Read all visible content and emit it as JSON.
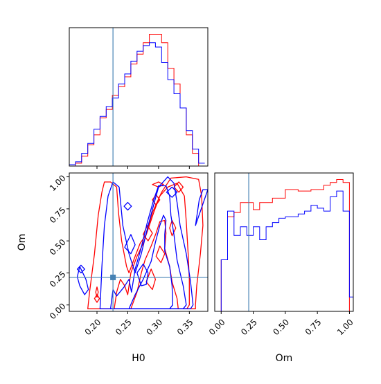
{
  "chart_data": {
    "type": "corner",
    "parameters": [
      "H0",
      "Om"
    ],
    "colors": {
      "run_a": "#0000ff",
      "run_b": "#ff0000",
      "truth": "#4682b4"
    },
    "truth": {
      "H0": 0.226,
      "Om": 0.215
    },
    "axes": {
      "H0": {
        "range": [
          0.155,
          0.38
        ],
        "ticks": [
          0.2,
          0.25,
          0.3,
          0.35
        ],
        "tick_labels": [
          "0.20",
          "0.25",
          "0.30",
          "0.35"
        ],
        "label": "H0"
      },
      "Om": {
        "range": [
          -0.05,
          1.03
        ],
        "ticks": [
          0.0,
          0.25,
          0.5,
          0.75,
          1.0
        ],
        "tick_labels": [
          "0.00",
          "0.25",
          "0.50",
          "0.75",
          "1.00"
        ],
        "label": "Om"
      }
    },
    "hist_h0": {
      "bin_edges": [
        0.155,
        0.165,
        0.175,
        0.185,
        0.195,
        0.205,
        0.215,
        0.225,
        0.235,
        0.245,
        0.255,
        0.265,
        0.275,
        0.285,
        0.295,
        0.305,
        0.315,
        0.325,
        0.335,
        0.345,
        0.355,
        0.365,
        0.375
      ],
      "run_a": [
        1,
        3,
        9,
        16,
        26,
        35,
        42,
        48,
        58,
        65,
        74,
        81,
        85,
        87,
        84,
        73,
        61,
        51,
        41,
        25,
        12,
        2
      ],
      "run_b": [
        0,
        2,
        7,
        15,
        22,
        34,
        40,
        50,
        56,
        63,
        72,
        79,
        87,
        93,
        93,
        87,
        69,
        58,
        41,
        22,
        9,
        0
      ]
    },
    "hist_om": {
      "bin_edges": [
        -0.05,
        0.0,
        0.05,
        0.1,
        0.15,
        0.2,
        0.25,
        0.3,
        0.35,
        0.4,
        0.45,
        0.5,
        0.55,
        0.6,
        0.65,
        0.7,
        0.75,
        0.8,
        0.85,
        0.9,
        0.95,
        1.0,
        1.03
      ],
      "run_a": [
        0,
        36,
        70,
        53,
        59,
        53,
        59,
        50,
        59,
        62,
        65,
        66,
        66,
        68,
        70,
        74,
        72,
        70,
        80,
        84,
        70,
        10
      ],
      "run_b": [
        0,
        36,
        66,
        69,
        76,
        76,
        71,
        76,
        76,
        79,
        79,
        85,
        85,
        84,
        84,
        85,
        85,
        88,
        90,
        92,
        90,
        0
      ]
    },
    "contours": {
      "run_a": [
        [
          [
            0.205,
            -0.03
          ],
          [
            0.208,
            0.3
          ],
          [
            0.212,
            0.62
          ],
          [
            0.218,
            0.85
          ],
          [
            0.226,
            0.96
          ],
          [
            0.236,
            0.92
          ],
          [
            0.242,
            0.62
          ],
          [
            0.252,
            0.4
          ],
          [
            0.262,
            0.25
          ],
          [
            0.272,
            0.4
          ],
          [
            0.282,
            0.6
          ],
          [
            0.292,
            0.78
          ],
          [
            0.3,
            0.92
          ],
          [
            0.315,
            1.0
          ],
          [
            0.325,
            0.95
          ],
          [
            0.33,
            0.8
          ],
          [
            0.335,
            0.62
          ],
          [
            0.345,
            0.4
          ],
          [
            0.352,
            0.18
          ],
          [
            0.356,
            0.0
          ],
          [
            0.352,
            -0.03
          ]
        ],
        [
          [
            0.222,
            -0.03
          ],
          [
            0.226,
            0.12
          ],
          [
            0.232,
            0.07
          ],
          [
            0.244,
            0.14
          ],
          [
            0.252,
            0.2
          ],
          [
            0.256,
            0.1
          ],
          [
            0.262,
            0.28
          ],
          [
            0.272,
            0.45
          ],
          [
            0.282,
            0.65
          ],
          [
            0.292,
            0.82
          ],
          [
            0.3,
            0.93
          ],
          [
            0.312,
            0.93
          ],
          [
            0.318,
            0.85
          ],
          [
            0.32,
            0.7
          ],
          [
            0.325,
            0.55
          ],
          [
            0.33,
            0.35
          ],
          [
            0.34,
            0.15
          ],
          [
            0.345,
            0.0
          ],
          [
            0.34,
            -0.03
          ]
        ],
        [
          [
            0.252,
            -0.03
          ],
          [
            0.262,
            0.08
          ],
          [
            0.275,
            0.2
          ],
          [
            0.288,
            0.34
          ],
          [
            0.295,
            0.49
          ],
          [
            0.302,
            0.62
          ],
          [
            0.308,
            0.7
          ],
          [
            0.312,
            0.66
          ],
          [
            0.31,
            0.55
          ],
          [
            0.31,
            0.42
          ],
          [
            0.318,
            0.3
          ],
          [
            0.322,
            0.15
          ],
          [
            0.323,
            0.0
          ],
          [
            0.318,
            -0.03
          ]
        ],
        [
          [
            0.18,
            0.08
          ],
          [
            0.172,
            0.15
          ],
          [
            0.168,
            0.22
          ],
          [
            0.172,
            0.3
          ],
          [
            0.182,
            0.2
          ],
          [
            0.186,
            0.12
          ]
        ],
        [
          [
            0.265,
            0.25
          ],
          [
            0.275,
            0.32
          ],
          [
            0.283,
            0.25
          ],
          [
            0.28,
            0.16
          ],
          [
            0.272,
            0.15
          ]
        ],
        [
          [
            0.245,
            0.45
          ],
          [
            0.255,
            0.55
          ],
          [
            0.262,
            0.47
          ],
          [
            0.255,
            0.4
          ]
        ],
        [
          [
            0.244,
            0.77
          ],
          [
            0.25,
            0.8
          ],
          [
            0.256,
            0.77
          ],
          [
            0.25,
            0.74
          ]
        ],
        [
          [
            0.313,
            0.88
          ],
          [
            0.322,
            0.92
          ],
          [
            0.33,
            0.88
          ],
          [
            0.322,
            0.84
          ]
        ],
        [
          [
            0.168,
            0.28
          ],
          [
            0.174,
            0.31
          ],
          [
            0.18,
            0.28
          ],
          [
            0.174,
            0.25
          ]
        ],
        [
          [
            0.36,
            0.62
          ],
          [
            0.366,
            0.82
          ],
          [
            0.372,
            0.9
          ],
          [
            0.38,
            0.9
          ]
        ]
      ],
      "run_b": [
        [
          [
            0.185,
            -0.03
          ],
          [
            0.188,
            0.1
          ],
          [
            0.196,
            0.4
          ],
          [
            0.202,
            0.7
          ],
          [
            0.208,
            0.88
          ],
          [
            0.212,
            0.96
          ],
          [
            0.222,
            0.96
          ],
          [
            0.232,
            0.92
          ],
          [
            0.235,
            0.72
          ],
          [
            0.24,
            0.5
          ],
          [
            0.248,
            0.3
          ],
          [
            0.252,
            0.25
          ],
          [
            0.262,
            0.38
          ],
          [
            0.27,
            0.48
          ],
          [
            0.28,
            0.55
          ],
          [
            0.29,
            0.72
          ],
          [
            0.305,
            0.88
          ],
          [
            0.32,
            0.99
          ],
          [
            0.345,
            1.0
          ],
          [
            0.365,
            0.98
          ],
          [
            0.37,
            0.85
          ],
          [
            0.372,
            0.62
          ],
          [
            0.368,
            0.4
          ],
          [
            0.362,
            0.15
          ],
          [
            0.36,
            0.0
          ],
          [
            0.36,
            -0.03
          ]
        ],
        [
          [
            0.228,
            -0.03
          ],
          [
            0.232,
            0.1
          ],
          [
            0.238,
            0.2
          ],
          [
            0.245,
            0.15
          ],
          [
            0.25,
            0.08
          ],
          [
            0.255,
            0.25
          ],
          [
            0.265,
            0.38
          ],
          [
            0.275,
            0.48
          ],
          [
            0.285,
            0.62
          ],
          [
            0.292,
            0.72
          ],
          [
            0.302,
            0.85
          ],
          [
            0.315,
            0.92
          ],
          [
            0.33,
            0.95
          ],
          [
            0.342,
            0.85
          ],
          [
            0.345,
            0.65
          ],
          [
            0.348,
            0.4
          ],
          [
            0.35,
            0.2
          ],
          [
            0.35,
            0.0
          ],
          [
            0.346,
            -0.03
          ]
        ],
        [
          [
            0.255,
            -0.03
          ],
          [
            0.265,
            0.1
          ],
          [
            0.272,
            0.25
          ],
          [
            0.278,
            0.35
          ],
          [
            0.288,
            0.46
          ],
          [
            0.296,
            0.56
          ],
          [
            0.302,
            0.65
          ],
          [
            0.31,
            0.66
          ],
          [
            0.312,
            0.56
          ],
          [
            0.31,
            0.44
          ],
          [
            0.318,
            0.3
          ],
          [
            0.322,
            0.18
          ],
          [
            0.33,
            0.05
          ],
          [
            0.332,
            -0.03
          ]
        ],
        [
          [
            0.28,
            0.18
          ],
          [
            0.288,
            0.28
          ],
          [
            0.295,
            0.2
          ],
          [
            0.29,
            0.12
          ]
        ],
        [
          [
            0.296,
            0.38
          ],
          [
            0.302,
            0.46
          ],
          [
            0.31,
            0.4
          ],
          [
            0.304,
            0.33
          ]
        ],
        [
          [
            0.275,
            0.55
          ],
          [
            0.282,
            0.62
          ],
          [
            0.29,
            0.56
          ],
          [
            0.283,
            0.5
          ]
        ],
        [
          [
            0.29,
            0.82
          ],
          [
            0.296,
            0.86
          ],
          [
            0.302,
            0.82
          ],
          [
            0.296,
            0.78
          ]
        ],
        [
          [
            0.325,
            0.92
          ],
          [
            0.333,
            0.96
          ],
          [
            0.34,
            0.92
          ],
          [
            0.333,
            0.88
          ]
        ],
        [
          [
            0.29,
            0.94
          ],
          [
            0.3,
            0.96
          ],
          [
            0.308,
            0.94
          ],
          [
            0.3,
            0.92
          ]
        ],
        [
          [
            0.318,
            0.6
          ],
          [
            0.322,
            0.66
          ],
          [
            0.328,
            0.6
          ],
          [
            0.322,
            0.54
          ]
        ],
        [
          [
            0.196,
            0.05
          ],
          [
            0.2,
            0.08
          ],
          [
            0.204,
            0.05
          ],
          [
            0.2,
            0.02
          ]
        ],
        [
          [
            0.198,
            0.1
          ],
          [
            0.2,
            0.14
          ],
          [
            0.202,
            0.1
          ],
          [
            0.2,
            0.06
          ]
        ]
      ]
    }
  }
}
